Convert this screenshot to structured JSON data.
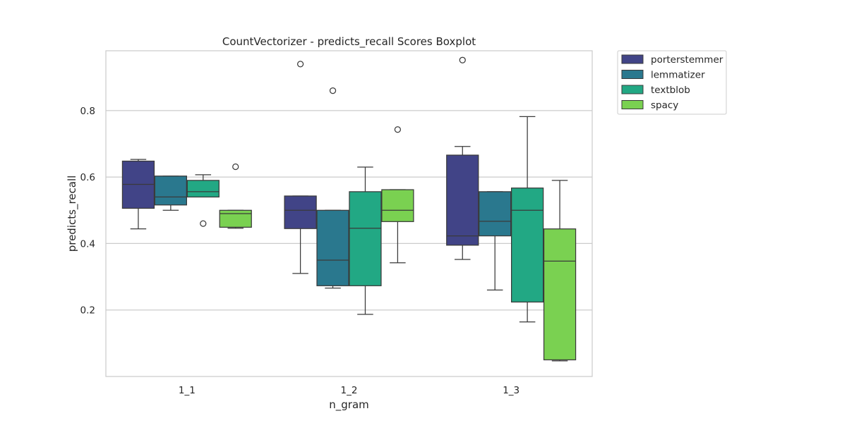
{
  "chart_data": {
    "type": "boxplot",
    "title": "CountVectorizer - predicts_recall  Scores Boxplot",
    "xlabel": "n_gram",
    "ylabel": "predicts_recall",
    "categories": [
      "1_1",
      "1_2",
      "1_3"
    ],
    "ylim": [
      0.0,
      0.98
    ],
    "yticks": [
      0.2,
      0.4,
      0.6,
      0.8
    ],
    "grid": "horizontal",
    "legend_position": "outside-top-right",
    "series": [
      {
        "name": "porterstemmer",
        "color": "#414487",
        "boxes": [
          {
            "whislo": 0.444,
            "q1": 0.506,
            "med": 0.578,
            "q3": 0.648,
            "whishi": 0.653,
            "fliers": []
          },
          {
            "whislo": 0.31,
            "q1": 0.445,
            "med": 0.5,
            "q3": 0.543,
            "whishi": 0.543,
            "fliers": [
              0.94
            ]
          },
          {
            "whislo": 0.352,
            "q1": 0.395,
            "med": 0.423,
            "q3": 0.666,
            "whishi": 0.692,
            "fliers": [
              0.952
            ]
          }
        ]
      },
      {
        "name": "lemmatizer",
        "color": "#2a788e",
        "boxes": [
          {
            "whislo": 0.5,
            "q1": 0.516,
            "med": 0.54,
            "q3": 0.603,
            "whishi": 0.603,
            "fliers": []
          },
          {
            "whislo": 0.266,
            "q1": 0.273,
            "med": 0.35,
            "q3": 0.5,
            "whishi": 0.5,
            "fliers": [
              0.86
            ]
          },
          {
            "whislo": 0.26,
            "q1": 0.423,
            "med": 0.467,
            "q3": 0.556,
            "whishi": 0.556,
            "fliers": []
          }
        ]
      },
      {
        "name": "textblob",
        "color": "#22a884",
        "boxes": [
          {
            "whislo": 0.54,
            "q1": 0.54,
            "med": 0.556,
            "q3": 0.59,
            "whishi": 0.607,
            "fliers": [
              0.46
            ]
          },
          {
            "whislo": 0.187,
            "q1": 0.273,
            "med": 0.446,
            "q3": 0.556,
            "whishi": 0.63,
            "fliers": []
          },
          {
            "whislo": 0.164,
            "q1": 0.224,
            "med": 0.5,
            "q3": 0.567,
            "whishi": 0.782,
            "fliers": []
          }
        ]
      },
      {
        "name": "spacy",
        "color": "#7ad151",
        "boxes": [
          {
            "whislo": 0.446,
            "q1": 0.449,
            "med": 0.49,
            "q3": 0.5,
            "whishi": 0.5,
            "fliers": [
              0.631
            ]
          },
          {
            "whislo": 0.342,
            "q1": 0.466,
            "med": 0.5,
            "q3": 0.562,
            "whishi": 0.562,
            "fliers": [
              0.743
            ]
          },
          {
            "whislo": 0.047,
            "q1": 0.05,
            "med": 0.347,
            "q3": 0.444,
            "whishi": 0.59,
            "fliers": []
          }
        ]
      }
    ]
  }
}
